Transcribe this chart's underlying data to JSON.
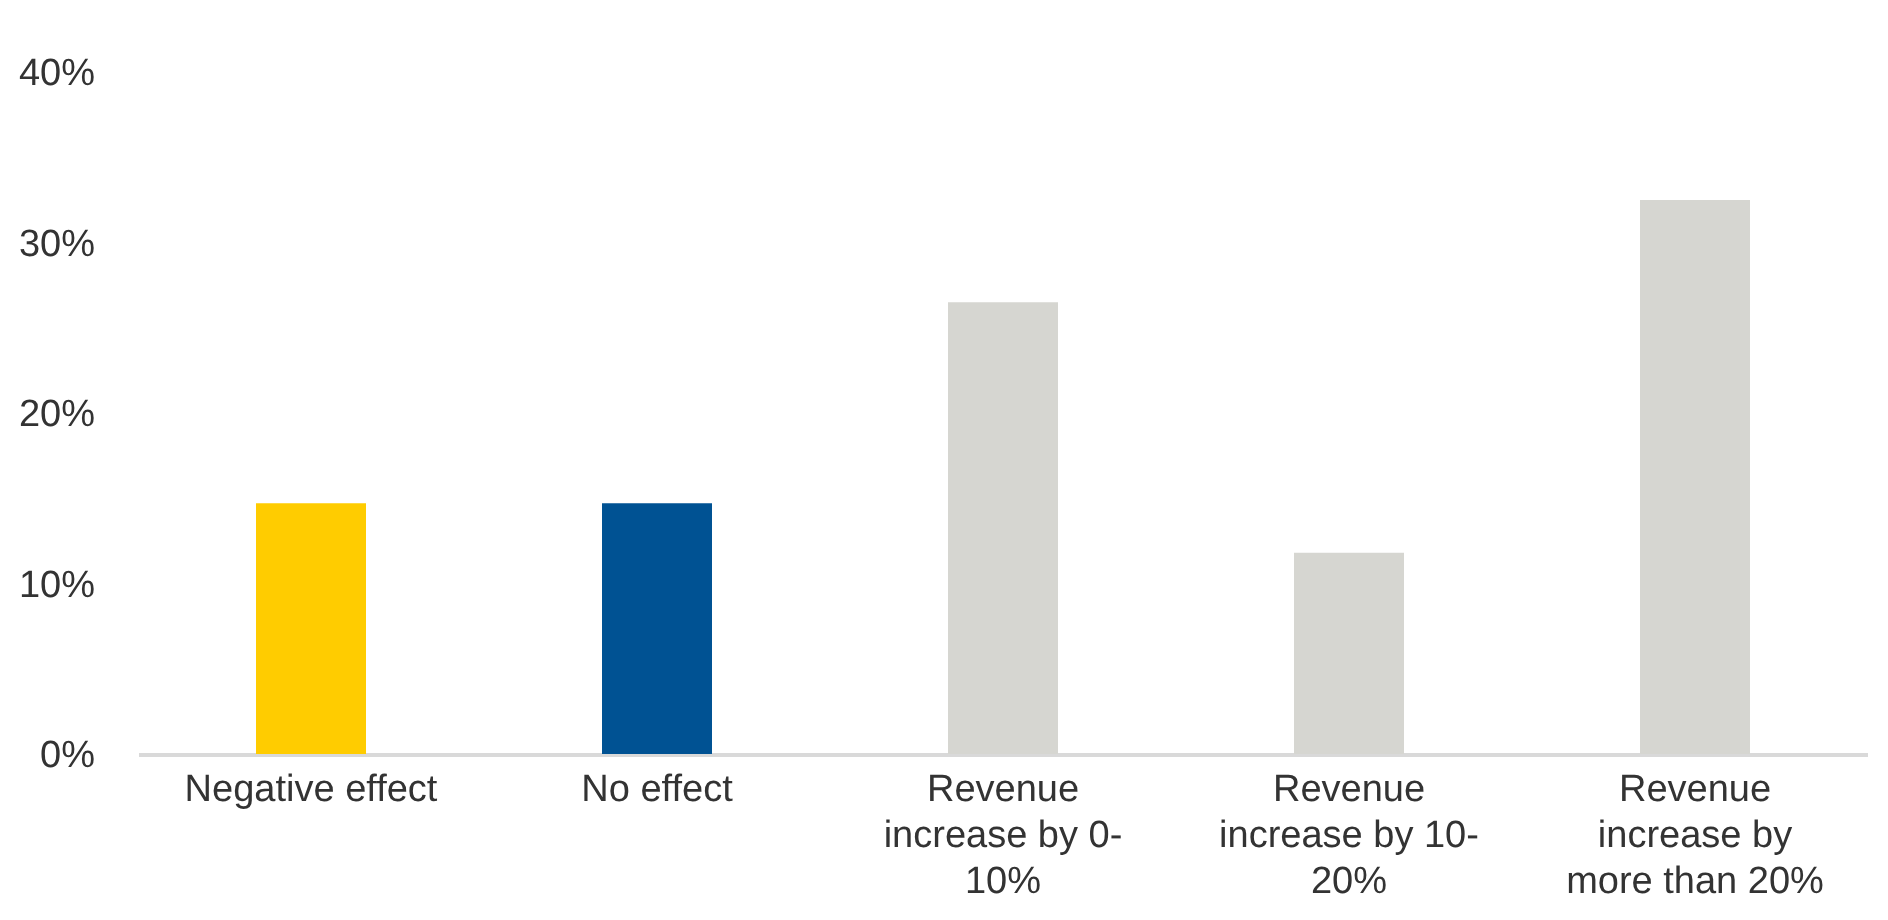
{
  "chart_data": {
    "type": "bar",
    "categories": [
      "Negative effect",
      "No effect",
      "Revenue increase by 0-10%",
      "Revenue increase by 10-20%",
      "Revenue increase by more than 20%"
    ],
    "values": [
      14.7,
      14.7,
      26.5,
      11.8,
      32.5
    ],
    "colors": [
      "#ffcc00",
      "#005293",
      "#d6d6d1",
      "#d6d6d1",
      "#d6d6d1"
    ],
    "ylim": [
      0,
      40
    ],
    "yticks": [
      {
        "value": 0,
        "label": "0%"
      },
      {
        "value": 10,
        "label": "10%"
      },
      {
        "value": 20,
        "label": "20%"
      },
      {
        "value": 30,
        "label": "30%"
      },
      {
        "value": 40,
        "label": "40%"
      }
    ],
    "grid": false,
    "legend": false
  }
}
